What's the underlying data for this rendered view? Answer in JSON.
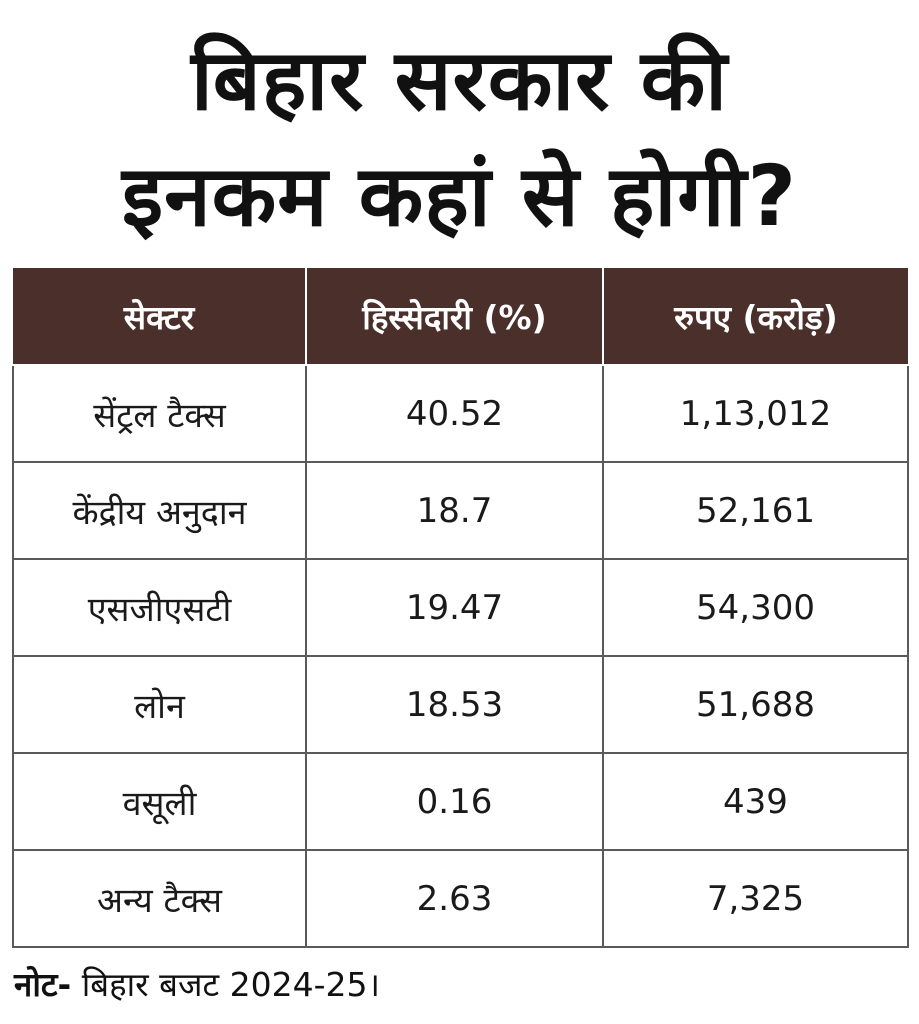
{
  "title": {
    "line1": "बिहार सरकार की",
    "line2": "इनकम कहां से होगी?"
  },
  "table": {
    "headers": [
      "सेक्टर",
      "हिस्सेदारी (%)",
      "रुपए (करोड़)"
    ],
    "rows": [
      [
        "सेंट्रल टैक्स",
        "40.52",
        "1,13,012"
      ],
      [
        "केंद्रीय अनुदान",
        "18.7",
        "52,161"
      ],
      [
        "एसजीएसटी",
        "19.47",
        "54,300"
      ],
      [
        "लोन",
        "18.53",
        "51,688"
      ],
      [
        "वसूली",
        "0.16",
        "439"
      ],
      [
        "अन्य टैक्स",
        "2.63",
        "7,325"
      ]
    ]
  },
  "note": {
    "label": "नोट-",
    "text": " बिहार बजट 2024-25।"
  },
  "colors": {
    "header_bg": "#4a2f2b",
    "grid": "#5a5a5a"
  }
}
